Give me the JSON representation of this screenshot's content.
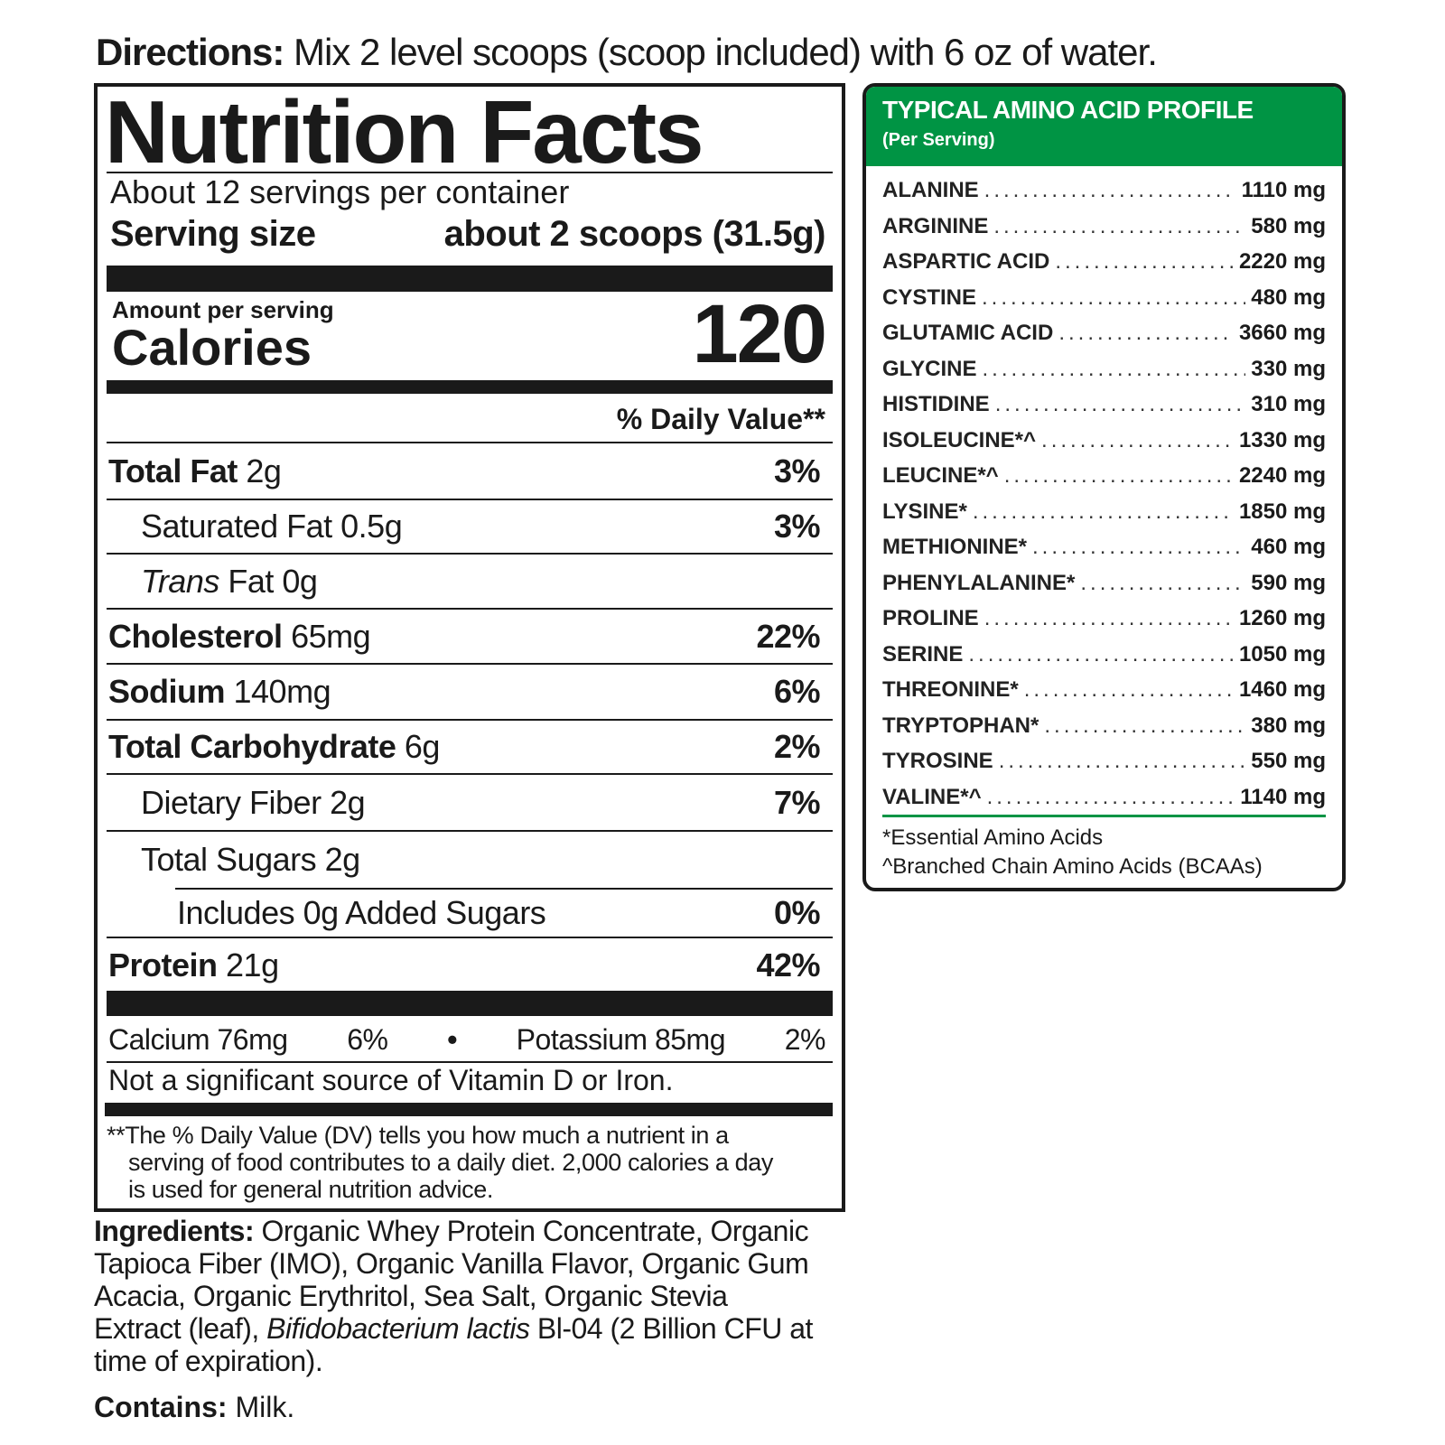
{
  "directions": {
    "label": "Directions:",
    "text": "Mix 2 level scoops (scoop included) with 6 oz of water."
  },
  "nutrition": {
    "title": "Nutrition Facts",
    "servings": "About 12 servings per container",
    "serving_size_label": "Serving size",
    "serving_size_value": "about 2 scoops (31.5g)",
    "amount_per_serving": "Amount per serving",
    "calories_label": "Calories",
    "calories_value": "120",
    "dv_header": "% Daily Value**",
    "rows": [
      {
        "name": "Total Fat",
        "amount": "2g",
        "dv": "3%"
      },
      {
        "name": "Saturated Fat",
        "amount": "0.5g",
        "dv": "3%"
      },
      {
        "name_italic": "Trans",
        "name": "Fat",
        "amount": "0g",
        "dv": ""
      },
      {
        "name": "Cholesterol",
        "amount": "65mg",
        "dv": "22%"
      },
      {
        "name": "Sodium",
        "amount": "140mg",
        "dv": "6%"
      },
      {
        "name": "Total Carbohydrate",
        "amount": "6g",
        "dv": "2%"
      },
      {
        "name": "Dietary Fiber",
        "amount": "2g",
        "dv": "7%"
      },
      {
        "name": "Total Sugars",
        "amount": "2g",
        "dv": ""
      },
      {
        "name": "Includes 0g Added Sugars",
        "amount": "",
        "dv": "0%"
      },
      {
        "name": "Protein",
        "amount": "21g",
        "dv": "42%"
      }
    ],
    "minerals": {
      "calcium": "Calcium  76mg",
      "calcium_dv": "6%",
      "bullet": "•",
      "potassium": "Potassium  85mg",
      "potassium_dv": "2%"
    },
    "not_significant": "Not a significant source of Vitamin D or Iron.",
    "footnote_1": "**The % Daily Value (DV) tells you how much a nutrient in a",
    "footnote_2": "serving of food contributes to a daily diet. 2,000 calories a day",
    "footnote_3": "is used for general nutrition advice."
  },
  "amino": {
    "title": "TYPICAL AMINO ACID PROFILE",
    "subtitle": "(Per Serving)",
    "accent_color": "#009444",
    "items": [
      {
        "name": "ALANINE",
        "value": "1110 mg"
      },
      {
        "name": "ARGININE",
        "value": "580 mg"
      },
      {
        "name": "ASPARTIC ACID",
        "value": "2220 mg"
      },
      {
        "name": "CYSTINE",
        "value": "480 mg"
      },
      {
        "name": "GLUTAMIC ACID",
        "value": "3660 mg"
      },
      {
        "name": "GLYCINE",
        "value": "330 mg"
      },
      {
        "name": "HISTIDINE",
        "value": "310 mg"
      },
      {
        "name": "ISOLEUCINE*^",
        "value": "1330 mg"
      },
      {
        "name": "LEUCINE*^",
        "value": "2240 mg"
      },
      {
        "name": "LYSINE*",
        "value": "1850 mg"
      },
      {
        "name": "METHIONINE*",
        "value": "460 mg"
      },
      {
        "name": "PHENYLALANINE*",
        "value": "590 mg"
      },
      {
        "name": "PROLINE",
        "value": "1260 mg"
      },
      {
        "name": "SERINE",
        "value": "1050 mg"
      },
      {
        "name": "THREONINE*",
        "value": "1460 mg"
      },
      {
        "name": "TRYPTOPHAN*",
        "value": "380 mg"
      },
      {
        "name": "TYROSINE",
        "value": "550 mg"
      },
      {
        "name": "VALINE*^",
        "value": "1140 mg"
      }
    ],
    "footnote_essential": "*Essential Amino Acids",
    "footnote_bcaa": "^Branched Chain Amino Acids (BCAAs)"
  },
  "ingredients": {
    "label": "Ingredients:",
    "text": "Organic Whey Protein Concentrate, Organic Tapioca Fiber (IMO), Organic Vanilla Flavor, Organic Gum Acacia, Organic Erythritol, Sea Salt, Organic Stevia Extract (leaf), ",
    "italic_1": "Bifidobacterium lactis",
    "text_2": " Bl-04 (2 Billion CFU at time of expiration)."
  },
  "contains": {
    "label": "Contains:",
    "text": "Milk."
  }
}
